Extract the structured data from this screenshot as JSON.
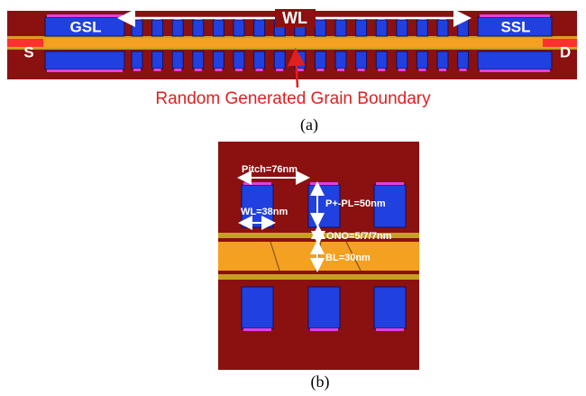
{
  "panel_a": {
    "labels": {
      "gsl": "GSL",
      "wl": "WL",
      "ssl": "SSL",
      "source": "S",
      "drain": "D"
    },
    "annotation": "Random Generated Grain Boundary",
    "caption": "(a)"
  },
  "panel_b": {
    "pitch": "Pitch=76nm",
    "wl": "WL=38nm",
    "pl": "P+-PL=50nm",
    "ono": "ONO=5/7/7nm",
    "bl": "BL=30nm",
    "caption": "(b)"
  }
}
